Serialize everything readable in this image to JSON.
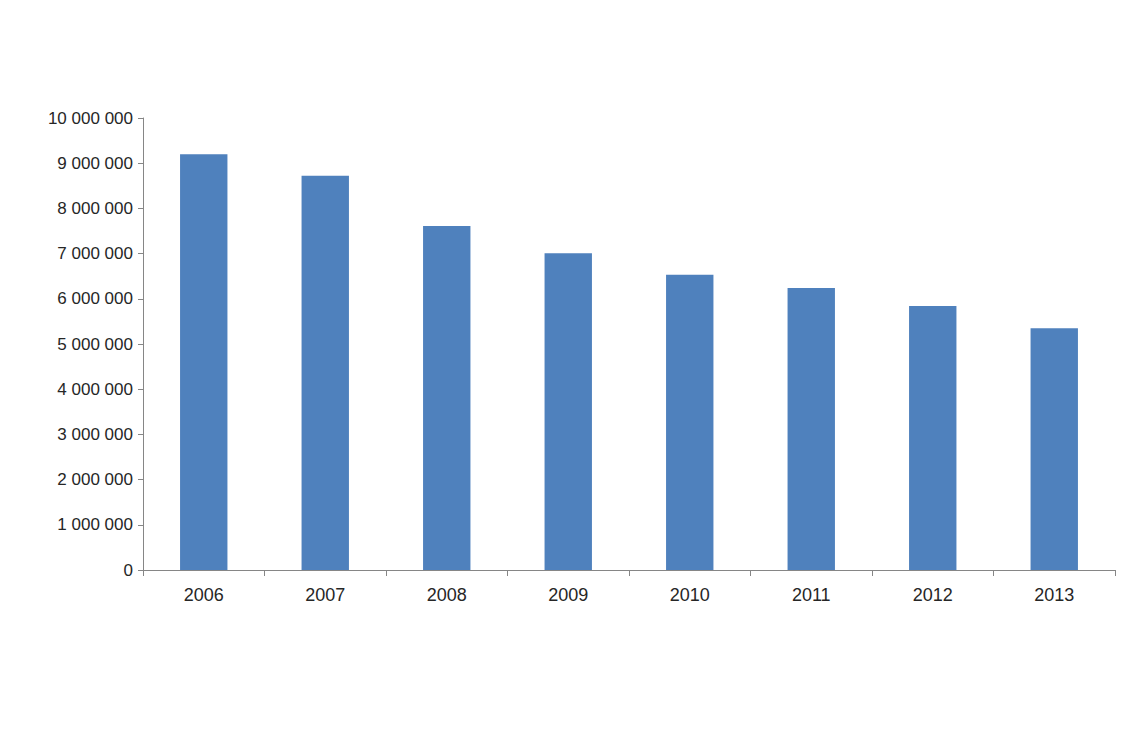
{
  "chart_data": {
    "type": "bar",
    "categories": [
      "2006",
      "2007",
      "2008",
      "2009",
      "2010",
      "2011",
      "2012",
      "2013"
    ],
    "values": [
      9200000,
      8720000,
      7610000,
      7010000,
      6530000,
      6240000,
      5840000,
      5350000
    ],
    "color": "#4f81bd",
    "ylim": [
      0,
      10000000
    ],
    "yticks": [
      {
        "value": 0,
        "label": "0"
      },
      {
        "value": 1000000,
        "label": "1 000 000"
      },
      {
        "value": 2000000,
        "label": "2 000 000"
      },
      {
        "value": 3000000,
        "label": "3 000 000"
      },
      {
        "value": 4000000,
        "label": "4 000 000"
      },
      {
        "value": 5000000,
        "label": "5 000 000"
      },
      {
        "value": 6000000,
        "label": "6 000 000"
      },
      {
        "value": 7000000,
        "label": "7 000 000"
      },
      {
        "value": 8000000,
        "label": "8 000 000"
      },
      {
        "value": 9000000,
        "label": "9 000 000"
      },
      {
        "value": 10000000,
        "label": "10 000 000"
      }
    ],
    "grid": false
  }
}
